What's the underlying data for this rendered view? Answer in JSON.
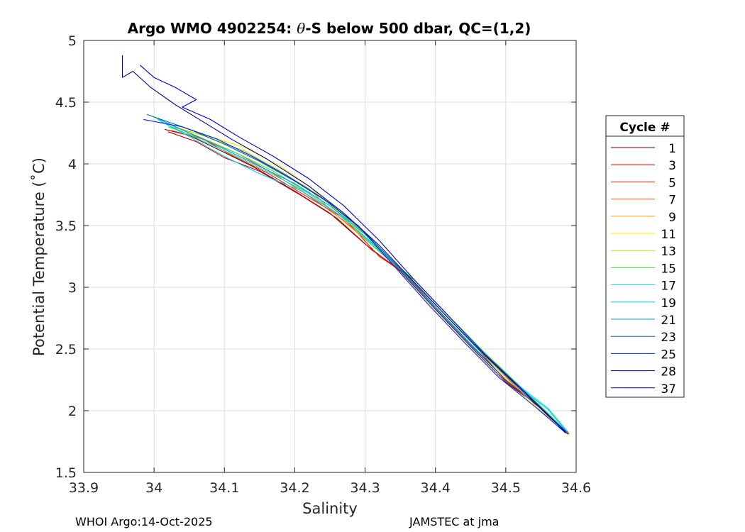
{
  "chart_data": {
    "type": "line",
    "title_prefix": "Argo WMO 4902254: ",
    "title_theta": "θ",
    "title_suffix": "-S below 500 dbar,  QC=(1,2)",
    "xlabel": "Salinity",
    "ylabel": "Potential Temperature (˚C)",
    "xlim": [
      33.9,
      34.6
    ],
    "ylim": [
      1.5,
      5
    ],
    "xticks": [
      33.9,
      34,
      34.1,
      34.2,
      34.3,
      34.4,
      34.5,
      34.6
    ],
    "xtick_labels": [
      "33.9",
      "34",
      "34.1",
      "34.2",
      "34.3",
      "34.4",
      "34.5",
      "34.6"
    ],
    "yticks": [
      1.5,
      2,
      2.5,
      3,
      3.5,
      4,
      4.5,
      5
    ],
    "ytick_labels": [
      "1.5",
      "2",
      "2.5",
      "3",
      "3.5",
      "4",
      "4.5",
      "5"
    ],
    "grid": true,
    "legend_title": "Cycle #",
    "legend_position": "right",
    "series": [
      {
        "name": "1",
        "color": "#800000",
        "points": [
          [
            34.015,
            4.28
          ],
          [
            34.05,
            4.23
          ],
          [
            34.09,
            4.12
          ],
          [
            34.14,
            3.98
          ],
          [
            34.2,
            3.78
          ],
          [
            34.25,
            3.6
          ],
          [
            34.3,
            3.35
          ],
          [
            34.35,
            3.13
          ],
          [
            34.4,
            2.82
          ],
          [
            34.45,
            2.52
          ],
          [
            34.5,
            2.23
          ],
          [
            34.55,
            2.02
          ],
          [
            34.588,
            1.81
          ]
        ]
      },
      {
        "name": "3",
        "color": "#cc0000",
        "points": [
          [
            34.02,
            4.26
          ],
          [
            34.06,
            4.18
          ],
          [
            34.1,
            4.05
          ],
          [
            34.15,
            3.94
          ],
          [
            34.21,
            3.74
          ],
          [
            34.26,
            3.56
          ],
          [
            34.31,
            3.3
          ],
          [
            34.36,
            3.1
          ],
          [
            34.41,
            2.8
          ],
          [
            34.46,
            2.5
          ],
          [
            34.5,
            2.24
          ],
          [
            34.55,
            2.02
          ],
          [
            34.59,
            1.81
          ]
        ]
      },
      {
        "name": "5",
        "color": "#ff1a00",
        "points": [
          [
            34.025,
            4.27
          ],
          [
            34.07,
            4.2
          ],
          [
            34.11,
            4.07
          ],
          [
            34.16,
            3.93
          ],
          [
            34.21,
            3.76
          ],
          [
            34.27,
            3.56
          ],
          [
            34.32,
            3.25
          ],
          [
            34.37,
            3.06
          ],
          [
            34.42,
            2.76
          ],
          [
            34.47,
            2.47
          ],
          [
            34.52,
            2.19
          ],
          [
            34.56,
            1.97
          ],
          [
            34.59,
            1.82
          ]
        ]
      },
      {
        "name": "7",
        "color": "#ff5500",
        "points": [
          [
            34.03,
            4.3
          ],
          [
            34.08,
            4.18
          ],
          [
            34.12,
            4.08
          ],
          [
            34.17,
            3.92
          ],
          [
            34.22,
            3.74
          ],
          [
            34.27,
            3.54
          ],
          [
            34.31,
            3.34
          ],
          [
            34.36,
            3.09
          ],
          [
            34.41,
            2.8
          ],
          [
            34.46,
            2.5
          ],
          [
            34.51,
            2.22
          ],
          [
            34.55,
            2.0
          ],
          [
            34.588,
            1.82
          ]
        ]
      },
      {
        "name": "9",
        "color": "#ff9900",
        "points": [
          [
            34.02,
            4.31
          ],
          [
            34.07,
            4.23
          ],
          [
            34.12,
            4.12
          ],
          [
            34.17,
            3.97
          ],
          [
            34.22,
            3.8
          ],
          [
            34.26,
            3.58
          ],
          [
            34.31,
            3.34
          ],
          [
            34.36,
            3.1
          ],
          [
            34.41,
            2.8
          ],
          [
            34.46,
            2.5
          ],
          [
            34.51,
            2.21
          ],
          [
            34.55,
            2.0
          ],
          [
            34.588,
            1.82
          ]
        ]
      },
      {
        "name": "11",
        "color": "#ffe600",
        "points": [
          [
            34.03,
            4.32
          ],
          [
            34.08,
            4.22
          ],
          [
            34.13,
            4.13
          ],
          [
            34.18,
            3.98
          ],
          [
            34.22,
            3.82
          ],
          [
            34.26,
            3.62
          ],
          [
            34.31,
            3.36
          ],
          [
            34.36,
            3.1
          ],
          [
            34.41,
            2.8
          ],
          [
            34.46,
            2.5
          ],
          [
            34.51,
            2.21
          ],
          [
            34.55,
            2.0
          ],
          [
            34.588,
            1.82
          ]
        ]
      },
      {
        "name": "13",
        "color": "#aaee00",
        "points": [
          [
            34.03,
            4.3
          ],
          [
            34.08,
            4.21
          ],
          [
            34.13,
            4.1
          ],
          [
            34.18,
            3.94
          ],
          [
            34.23,
            3.76
          ],
          [
            34.27,
            3.58
          ],
          [
            34.32,
            3.3
          ],
          [
            34.37,
            3.06
          ],
          [
            34.42,
            2.76
          ],
          [
            34.47,
            2.46
          ],
          [
            34.52,
            2.19
          ],
          [
            34.56,
            1.97
          ],
          [
            34.59,
            1.82
          ]
        ]
      },
      {
        "name": "15",
        "color": "#33ee33",
        "points": [
          [
            34.02,
            4.3
          ],
          [
            34.07,
            4.2
          ],
          [
            34.12,
            4.08
          ],
          [
            34.17,
            3.94
          ],
          [
            34.22,
            3.76
          ],
          [
            34.27,
            3.56
          ],
          [
            34.32,
            3.3
          ],
          [
            34.37,
            3.06
          ],
          [
            34.42,
            2.76
          ],
          [
            34.47,
            2.47
          ],
          [
            34.52,
            2.2
          ],
          [
            34.56,
            1.98
          ],
          [
            34.588,
            1.82
          ]
        ]
      },
      {
        "name": "17",
        "color": "#00e5c8",
        "points": [
          [
            34.01,
            4.34
          ],
          [
            34.06,
            4.21
          ],
          [
            34.11,
            4.08
          ],
          [
            34.16,
            3.94
          ],
          [
            34.22,
            3.76
          ],
          [
            34.27,
            3.56
          ],
          [
            34.31,
            3.34
          ],
          [
            34.36,
            3.1
          ],
          [
            34.41,
            2.8
          ],
          [
            34.46,
            2.51
          ],
          [
            34.51,
            2.24
          ],
          [
            34.56,
            2.02
          ],
          [
            34.588,
            1.83
          ]
        ]
      },
      {
        "name": "19",
        "color": "#00ccff",
        "points": [
          [
            34.005,
            4.36
          ],
          [
            34.05,
            4.22
          ],
          [
            34.1,
            4.06
          ],
          [
            34.15,
            3.92
          ],
          [
            34.21,
            3.78
          ],
          [
            34.26,
            3.6
          ],
          [
            34.31,
            3.36
          ],
          [
            34.36,
            3.1
          ],
          [
            34.41,
            2.8
          ],
          [
            34.46,
            2.5
          ],
          [
            34.51,
            2.23
          ],
          [
            34.56,
            2.01
          ],
          [
            34.588,
            1.82
          ]
        ]
      },
      {
        "name": "21",
        "color": "#0099cc",
        "points": [
          [
            34.0,
            4.38
          ],
          [
            34.05,
            4.25
          ],
          [
            34.1,
            4.12
          ],
          [
            34.15,
            3.98
          ],
          [
            34.2,
            3.84
          ],
          [
            34.25,
            3.66
          ],
          [
            34.3,
            3.43
          ],
          [
            34.35,
            3.14
          ],
          [
            34.4,
            2.83
          ],
          [
            34.45,
            2.53
          ],
          [
            34.5,
            2.25
          ],
          [
            34.55,
            2.02
          ],
          [
            34.588,
            1.82
          ]
        ]
      },
      {
        "name": "23",
        "color": "#006699",
        "points": [
          [
            33.99,
            4.4
          ],
          [
            34.05,
            4.28
          ],
          [
            34.1,
            4.16
          ],
          [
            34.15,
            4.02
          ],
          [
            34.2,
            3.86
          ],
          [
            34.25,
            3.68
          ],
          [
            34.3,
            3.44
          ],
          [
            34.35,
            3.15
          ],
          [
            34.4,
            2.84
          ],
          [
            34.45,
            2.54
          ],
          [
            34.5,
            2.25
          ],
          [
            34.55,
            2.02
          ],
          [
            34.588,
            1.82
          ]
        ]
      },
      {
        "name": "25",
        "color": "#0022ee",
        "points": [
          [
            33.985,
            4.36
          ],
          [
            34.04,
            4.3
          ],
          [
            34.09,
            4.2
          ],
          [
            34.14,
            4.06
          ],
          [
            34.19,
            3.9
          ],
          [
            34.24,
            3.72
          ],
          [
            34.29,
            3.5
          ],
          [
            34.34,
            3.18
          ],
          [
            34.39,
            2.86
          ],
          [
            34.44,
            2.56
          ],
          [
            34.49,
            2.27
          ],
          [
            34.54,
            2.04
          ],
          [
            34.585,
            1.82
          ]
        ]
      },
      {
        "name": "28",
        "color": "#000099",
        "points": [
          [
            33.955,
            4.88
          ],
          [
            33.955,
            4.7
          ],
          [
            33.97,
            4.75
          ],
          [
            33.995,
            4.62
          ],
          [
            34.03,
            4.48
          ],
          [
            34.07,
            4.34
          ],
          [
            34.11,
            4.2
          ],
          [
            34.16,
            4.04
          ],
          [
            34.22,
            3.82
          ],
          [
            34.27,
            3.6
          ],
          [
            34.32,
            3.34
          ],
          [
            34.37,
            3.04
          ],
          [
            34.42,
            2.74
          ],
          [
            34.47,
            2.45
          ],
          [
            34.52,
            2.18
          ],
          [
            34.56,
            1.96
          ],
          [
            34.585,
            1.83
          ]
        ]
      },
      {
        "name": "37",
        "color": "#0000cc",
        "points": [
          [
            33.98,
            4.8
          ],
          [
            34.0,
            4.7
          ],
          [
            34.03,
            4.62
          ],
          [
            34.06,
            4.52
          ],
          [
            34.04,
            4.46
          ],
          [
            34.08,
            4.36
          ],
          [
            34.12,
            4.22
          ],
          [
            34.17,
            4.06
          ],
          [
            34.22,
            3.88
          ],
          [
            34.27,
            3.66
          ],
          [
            34.32,
            3.38
          ],
          [
            34.37,
            3.06
          ],
          [
            34.42,
            2.76
          ],
          [
            34.47,
            2.46
          ],
          [
            34.52,
            2.19
          ],
          [
            34.56,
            1.97
          ],
          [
            34.585,
            1.82
          ]
        ]
      }
    ]
  },
  "footer": {
    "left": "WHOI Argo:14-Oct-2025",
    "right": "JAMSTEC at jma"
  }
}
